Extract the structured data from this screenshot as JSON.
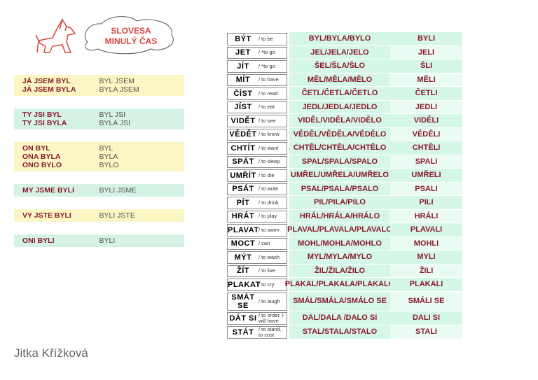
{
  "header": {
    "title_lines": [
      "SLOVESA",
      "MINULÝ ČAS"
    ]
  },
  "pronoun_boxes": [
    {
      "forms": [
        "JÁ JSEM BYL",
        "JÁ JSEM BYLA"
      ],
      "short": [
        "BYL JSEM",
        "BYLA JSEM"
      ]
    },
    {
      "forms": [
        "TY JSI BYL",
        "TY JSI BYLA"
      ],
      "short": [
        "BYL JSI",
        "BYLA JSI"
      ]
    },
    {
      "forms": [
        "ON BYL",
        "ONA BYLA",
        "ONO BYLO"
      ],
      "short": [
        "BYL",
        "BYLA",
        "BYLO"
      ]
    },
    {
      "forms": [
        "MY JSME BYLI"
      ],
      "short": [
        "BYLI JSME"
      ]
    },
    {
      "forms": [
        "VY JSTE BYLI"
      ],
      "short": [
        "BYLI JSTE"
      ]
    },
    {
      "forms": [
        "ONI BYLI"
      ],
      "short": [
        "BYLI"
      ]
    }
  ],
  "verbs": {
    "rows": [
      {
        "verb": "BÝT",
        "translation": "/ to be",
        "forms": "BYL/BYLA/BYLO",
        "plural": "BYLI"
      },
      {
        "verb": "JET",
        "translation": "/ *to go",
        "forms": "JEL/JELA/JELO",
        "plural": "JELI"
      },
      {
        "verb": "JÍT",
        "translation": "/ *to go",
        "forms": "ŠEL/ŠLA/ŠLO",
        "plural": "ŠLI"
      },
      {
        "verb": "MÍT",
        "translation": "/ to have",
        "forms": "MĚL/MĚLA/MĚLO",
        "plural": "MĚLI"
      },
      {
        "verb": "ČÍST",
        "translation": "/ to read",
        "forms": "ČETL/ČETLA/ČETLO",
        "plural": "ČETLI"
      },
      {
        "verb": "JÍST",
        "translation": "/ to eat",
        "forms": "JEDL/JEDLA/JEDLO",
        "plural": "JEDLI"
      },
      {
        "verb": "VIDĚT",
        "translation": "/ to see",
        "forms": "VIDĚL/VIDĚLA/VIDĚLO",
        "plural": "VIDĚLI"
      },
      {
        "verb": "VĚDĚT",
        "translation": "/ to know",
        "forms": "VĚDĚL/VĚDĚLA/VĚDĚLO",
        "plural": "VĚDĚLI"
      },
      {
        "verb": "CHTÍT",
        "translation": "/ to want",
        "forms": "CHTĚL/CHTĚLA/CHTĚLO",
        "plural": "CHTĚLI"
      },
      {
        "verb": "SPÁT",
        "translation": "/ to sleep",
        "forms": "SPAL/SPALA/SPALO",
        "plural": "SPALI"
      },
      {
        "verb": "UMŘÍT",
        "translation": "/ to die",
        "forms": "UMŘEL/UMŘELA/UMŘELO",
        "plural": "UMŘELI"
      },
      {
        "verb": "PSÁT",
        "translation": "/ to write",
        "forms": "PSAL/PSALA/PSALO",
        "plural": "PSALI"
      },
      {
        "verb": "PÍT",
        "translation": "/ to drink",
        "forms": "PIL/PILA/PILO",
        "plural": "PILI"
      },
      {
        "verb": "HRÁT",
        "translation": "/ to play",
        "forms": "HRÁL/HRÁLA/HRÁLO",
        "plural": "HRÁLI"
      },
      {
        "verb": "PLAVAT",
        "translation": "/ to swim",
        "forms": "PLAVAL/PLAVALA/PLAVALO",
        "plural": "PLAVALI"
      },
      {
        "verb": "MOCT",
        "translation": "/ can",
        "forms": "MOHL/MOHLA/MOHLO",
        "plural": "MOHLI"
      },
      {
        "verb": "MÝT",
        "translation": "/ to wash",
        "forms": "MYL/MYLA/MYLO",
        "plural": "MYLI"
      },
      {
        "verb": "ŽÍT",
        "translation": "/ to live",
        "forms": "ŽIL/ŽILA/ŽILO",
        "plural": "ŽILI"
      },
      {
        "verb": "PLAKAT",
        "translation": "/ to cry",
        "forms": "PLAKAL/PLAKALA/PLAKALO",
        "plural": "PLAKALI"
      },
      {
        "verb": "SMÁT SE",
        "translation": "/ to laugh",
        "forms": "SMÁL/SMÁLA/SMÁLO SE",
        "plural": "SMÁLI SE"
      },
      {
        "verb": "DÁT SI",
        "translation": "/ to order, I will have",
        "forms": "DAL/DALA /DALO SI",
        "plural": "DALI SI"
      },
      {
        "verb": "STÁT",
        "translation": "/ to stand, to cost",
        "forms": "STAL/STALA/STALO",
        "plural": "STALI"
      }
    ]
  },
  "author": "Jitka Křížková"
}
